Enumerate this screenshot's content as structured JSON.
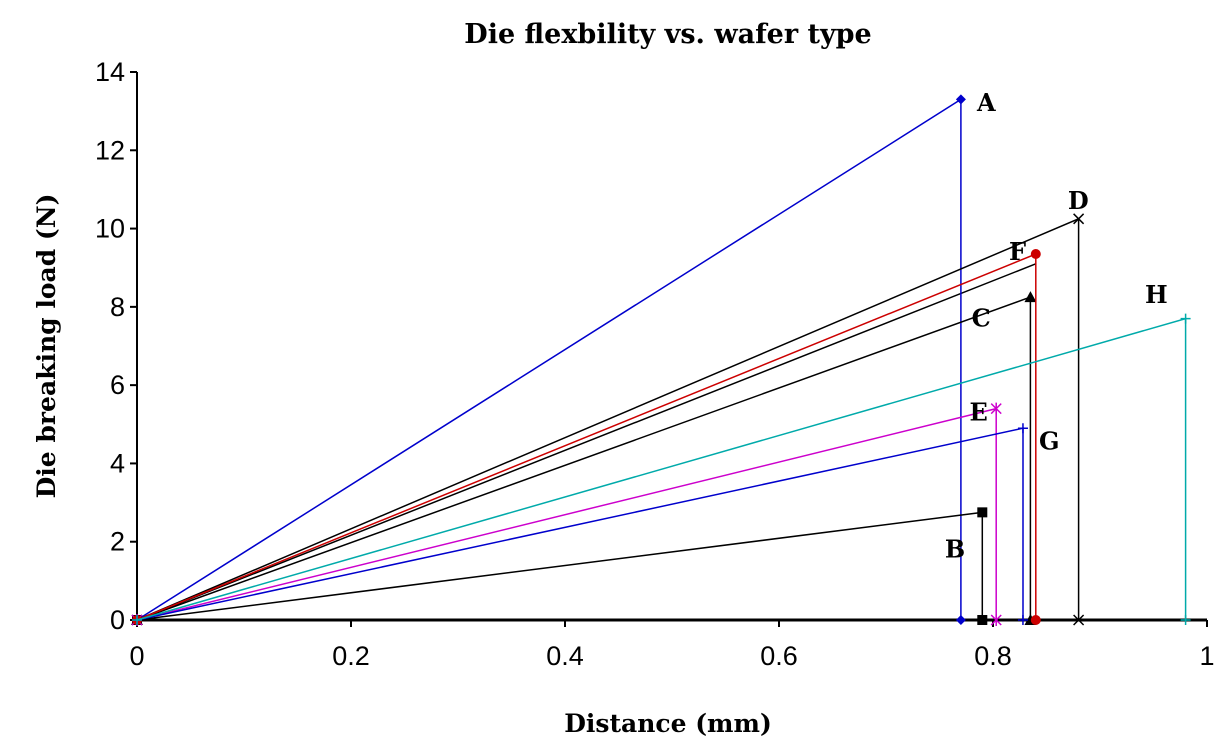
{
  "chart_data": {
    "type": "line",
    "title": "Die flexbility vs. wafer type",
    "xlabel": "Distance (mm)",
    "ylabel": "Die breaking load (N)",
    "xlim": [
      0,
      1
    ],
    "ylim": [
      0,
      14
    ],
    "xticks": [
      0,
      0.2,
      0.4,
      0.6,
      0.8,
      1
    ],
    "yticks": [
      0,
      2,
      4,
      6,
      8,
      10,
      12,
      14
    ],
    "grid": false,
    "legend": "none",
    "series": [
      {
        "name": "A",
        "color": "#0000cc",
        "marker": "diamond",
        "points": [
          [
            0,
            0
          ],
          [
            0.77,
            13.3
          ],
          [
            0.77,
            0
          ]
        ]
      },
      {
        "name": "B",
        "color": "#000000",
        "marker": "square",
        "points": [
          [
            0,
            0
          ],
          [
            0.79,
            2.75
          ],
          [
            0.79,
            0
          ]
        ]
      },
      {
        "name": "C",
        "color": "#000000",
        "marker": "triangle",
        "points": [
          [
            0,
            0
          ],
          [
            0.835,
            8.25
          ],
          [
            0.835,
            0
          ]
        ]
      },
      {
        "name": "D",
        "color": "#000000",
        "marker": "x",
        "points": [
          [
            0,
            0
          ],
          [
            0.88,
            10.25
          ],
          [
            0.88,
            0
          ]
        ]
      },
      {
        "name": "E",
        "color": "#cc00cc",
        "marker": "star",
        "points": [
          [
            0,
            0
          ],
          [
            0.803,
            5.4
          ],
          [
            0.803,
            0
          ]
        ]
      },
      {
        "name": "F",
        "color": "#cc0000",
        "marker": "circle",
        "points": [
          [
            0,
            0
          ],
          [
            0.84,
            9.35
          ],
          [
            0.84,
            0
          ]
        ]
      },
      {
        "name": "G",
        "color": "#0000cc",
        "marker": "plus",
        "points": [
          [
            0,
            0
          ],
          [
            0.828,
            4.9
          ],
          [
            0.828,
            0
          ]
        ]
      },
      {
        "name": "H",
        "color": "#00aaaa",
        "marker": "plus",
        "points": [
          [
            0,
            0
          ],
          [
            0.98,
            7.7
          ],
          [
            0.98,
            0
          ]
        ]
      }
    ],
    "extra_lines": [
      {
        "color": "#000000",
        "points": [
          [
            0,
            0
          ],
          [
            0.84,
            9.1
          ]
        ]
      }
    ],
    "annotations": [
      {
        "text": "A",
        "x": 0.785,
        "y": 13.0
      },
      {
        "text": "B",
        "x": 0.755,
        "y": 1.6
      },
      {
        "text": "C",
        "x": 0.78,
        "y": 7.5
      },
      {
        "text": "D",
        "x": 0.87,
        "y": 10.5
      },
      {
        "text": "E",
        "x": 0.778,
        "y": 5.1
      },
      {
        "text": "F",
        "x": 0.815,
        "y": 9.2
      },
      {
        "text": "G",
        "x": 0.843,
        "y": 4.35
      },
      {
        "text": "H",
        "x": 0.942,
        "y": 8.1
      }
    ]
  }
}
